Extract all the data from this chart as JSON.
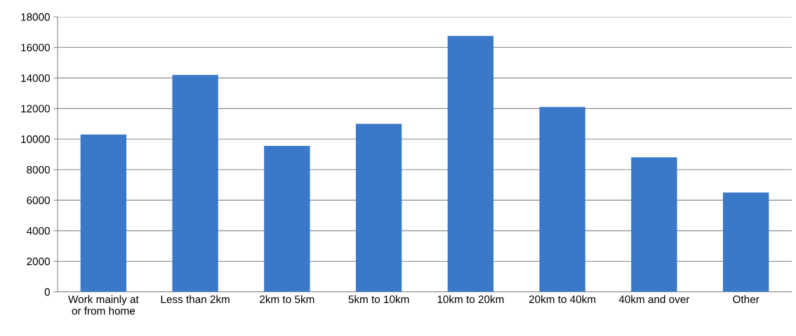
{
  "chart_data": {
    "type": "bar",
    "categories": [
      "Work mainly at\nor from home",
      "Less than 2km",
      "2km to 5km",
      "5km to 10km",
      "10km to 20km",
      "20km to 40km",
      "40km and over",
      "Other"
    ],
    "values": [
      10300,
      14200,
      9550,
      11000,
      16750,
      12100,
      8800,
      6500
    ],
    "color": "#3a78c8",
    "ylim": [
      0,
      18000
    ],
    "yticks": [
      0,
      2000,
      4000,
      6000,
      8000,
      10000,
      12000,
      14000,
      16000,
      18000
    ],
    "grid": "y"
  }
}
